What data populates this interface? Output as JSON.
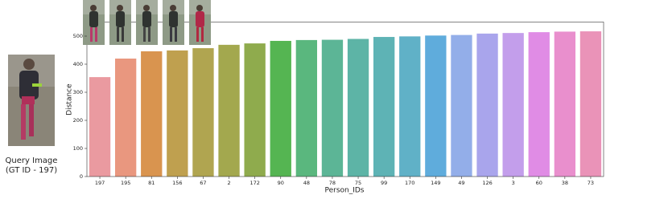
{
  "query_image": {
    "caption": [
      "Query Image",
      "(GT ID - 197)"
    ]
  },
  "chart_data": {
    "type": "bar",
    "x_label": "Person_IDs",
    "y_label": "Distance",
    "categories": [
      "197",
      "195",
      "81",
      "156",
      "67",
      "2",
      "172",
      "90",
      "48",
      "78",
      "75",
      "99",
      "170",
      "149",
      "49",
      "126",
      "3",
      "60",
      "38",
      "73"
    ],
    "values": [
      354,
      420,
      446,
      449,
      457,
      469,
      474,
      483,
      486,
      487,
      490,
      497,
      499,
      502,
      504,
      509,
      511,
      514,
      516,
      517
    ],
    "colors": [
      "#ea9aa0",
      "#e9977f",
      "#d9944f",
      "#bfa04f",
      "#b0a550",
      "#a3a84e",
      "#8fab4d",
      "#55b552",
      "#5ab77e",
      "#5cb596",
      "#5db4a6",
      "#5eb3b5",
      "#60b1c7",
      "#5facdc",
      "#93aee9",
      "#a9a5ec",
      "#c39eeb",
      "#e08ce5",
      "#e98fcd",
      "#ea93b8"
    ],
    "ylim": [
      0,
      550
    ],
    "yticks": [
      0,
      100,
      200,
      300,
      400,
      500
    ]
  }
}
